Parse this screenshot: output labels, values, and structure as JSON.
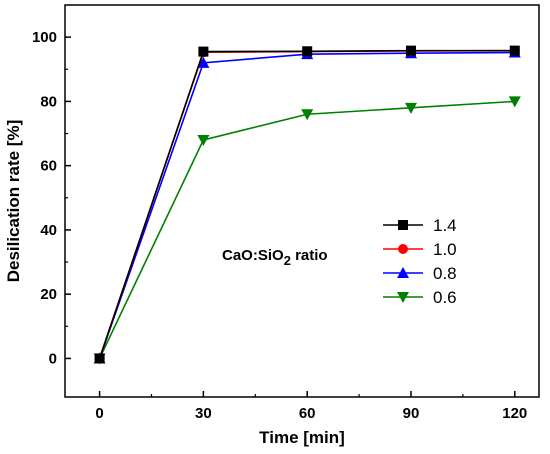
{
  "chart_data": {
    "type": "line",
    "xlabel": "Time [min]",
    "ylabel": "Desilication rate [%]",
    "x": [
      0,
      30,
      60,
      90,
      120
    ],
    "xlim": [
      -10,
      127
    ],
    "ylim": [
      -12,
      110
    ],
    "xticks": [
      0,
      30,
      60,
      90,
      120
    ],
    "yticks": [
      0,
      20,
      40,
      60,
      80,
      100
    ],
    "annotation": {
      "prefix": "CaO:SiO",
      "subscript": "2",
      "suffix": " ratio"
    },
    "legend_position": "center-right",
    "series": [
      {
        "name": "1.4",
        "color": "#000000",
        "marker": "square",
        "values": [
          0,
          95.5,
          95.6,
          95.8,
          95.8
        ]
      },
      {
        "name": "1.0",
        "color": "#ff0000",
        "marker": "circle",
        "values": [
          0,
          95.3,
          95.5,
          95.7,
          95.8
        ]
      },
      {
        "name": "0.8",
        "color": "#0000ff",
        "marker": "triangle-up",
        "values": [
          0,
          92,
          94.7,
          95,
          95.2
        ]
      },
      {
        "name": "0.6",
        "color": "#008000",
        "marker": "triangle-down",
        "values": [
          0,
          68,
          76,
          78,
          80
        ]
      }
    ]
  }
}
